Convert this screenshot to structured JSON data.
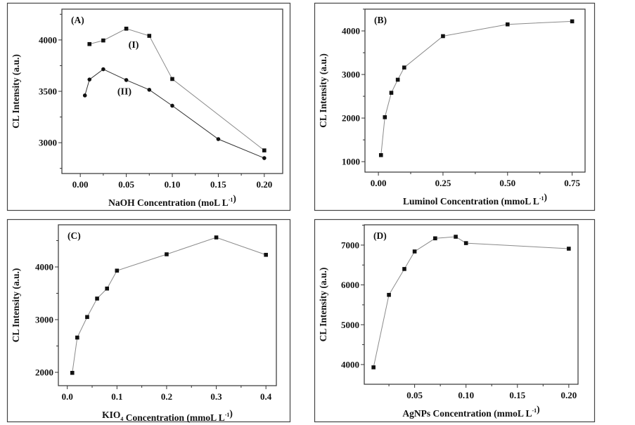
{
  "chart_data": [
    {
      "type": "line",
      "panel_label": "(A)",
      "xlabel": [
        {
          "t": "NaOH Concentration (moL L"
        },
        {
          "t": "-1",
          "s": "sup"
        },
        {
          "t": ")"
        }
      ],
      "ylabel": "CL Intensity (a.u.)",
      "xlim": [
        -0.02,
        0.22
      ],
      "ylim": [
        2700,
        4300
      ],
      "xticks": [
        0,
        0.05,
        0.1,
        0.15,
        0.2
      ],
      "xtick_labels": [
        "0.00",
        "0.05",
        "0.10",
        "0.15",
        "0.20"
      ],
      "xminor": 0.025,
      "yticks": [
        3000,
        3500,
        4000
      ],
      "ytick_labels": [
        "3000",
        "3500",
        "4000"
      ],
      "yminor": 250,
      "series": [
        {
          "name": "(I)",
          "marker": "square",
          "color": "#8a8a8a",
          "x": [
            0.01,
            0.025,
            0.05,
            0.075,
            0.1,
            0.2
          ],
          "y": [
            3960,
            3995,
            4110,
            4040,
            3620,
            2925
          ],
          "label_at": [
            0.058,
            3925
          ]
        },
        {
          "name": "(II)",
          "marker": "circle",
          "color": "#333333",
          "x": [
            0.005,
            0.01,
            0.025,
            0.05,
            0.075,
            0.1,
            0.15,
            0.2
          ],
          "y": [
            3460,
            3615,
            3715,
            3610,
            3515,
            3360,
            3035,
            2850
          ],
          "label_at": [
            0.048,
            3470
          ]
        }
      ]
    },
    {
      "type": "line",
      "panel_label": "(B)",
      "xlabel": [
        {
          "t": "Luminol Concentration (mmoL L"
        },
        {
          "t": "-1",
          "s": "sup"
        },
        {
          "t": ")"
        }
      ],
      "ylabel": "CL Intensity (a.u.)",
      "xlim": [
        -0.052,
        0.8
      ],
      "ylim": [
        760,
        4500
      ],
      "xticks": [
        0,
        0.25,
        0.5,
        0.75
      ],
      "xtick_labels": [
        "0.00",
        "0.25",
        "0.50",
        "0.75"
      ],
      "xminor": 0.125,
      "yticks": [
        1000,
        2000,
        3000,
        4000
      ],
      "ytick_labels": [
        "1000",
        "2000",
        "3000",
        "4000"
      ],
      "yminor": 500,
      "series": [
        {
          "name": "",
          "marker": "square",
          "color": "#8a8a8a",
          "x": [
            0.01,
            0.025,
            0.05,
            0.075,
            0.1,
            0.25,
            0.5,
            0.75
          ],
          "y": [
            1150,
            2020,
            2580,
            2880,
            3160,
            3880,
            4150,
            4220
          ]
        }
      ]
    },
    {
      "type": "line",
      "panel_label": "(C)",
      "xlabel": [
        {
          "t": "KIO"
        },
        {
          "t": "4",
          "s": "sub"
        },
        {
          "t": " Concentration (mmoL L"
        },
        {
          "t": "-1",
          "s": "sup"
        },
        {
          "t": ")"
        }
      ],
      "ylabel": "CL Intensity (a.u.)",
      "xlim": [
        -0.018,
        0.421
      ],
      "ylim": [
        1747,
        4800
      ],
      "xticks": [
        0,
        0.1,
        0.2,
        0.3,
        0.4
      ],
      "xtick_labels": [
        "0.0",
        "0.1",
        "0.2",
        "0.3",
        "0.4"
      ],
      "xminor": 0.05,
      "yticks": [
        2000,
        3000,
        4000
      ],
      "ytick_labels": [
        "2000",
        "3000",
        "4000"
      ],
      "yminor": 500,
      "series": [
        {
          "name": "",
          "marker": "square",
          "color": "#8a8a8a",
          "x": [
            0.01,
            0.02,
            0.04,
            0.06,
            0.08,
            0.1,
            0.2,
            0.3,
            0.4
          ],
          "y": [
            1990,
            2660,
            3050,
            3400,
            3590,
            3930,
            4240,
            4560,
            4230
          ]
        }
      ]
    },
    {
      "type": "line",
      "panel_label": "(D)",
      "xlabel": [
        {
          "t": "AgNPs Concentration (mmoL L"
        },
        {
          "t": "-1",
          "s": "sup"
        },
        {
          "t": ")"
        }
      ],
      "ylabel": "CL Intensity (a.u.)",
      "xlim": [
        0.001,
        0.209
      ],
      "ylim": [
        3505,
        7510
      ],
      "xticks": [
        0.05,
        0.1,
        0.15,
        0.2
      ],
      "xtick_labels": [
        "0.05",
        "0.10",
        "0.15",
        "0.20"
      ],
      "xminor": 0.025,
      "yticks": [
        4000,
        5000,
        6000,
        7000
      ],
      "ytick_labels": [
        "4000",
        "5000",
        "6000",
        "7000"
      ],
      "yminor": 500,
      "series": [
        {
          "name": "",
          "marker": "square",
          "color": "#8a8a8a",
          "x": [
            0.01,
            0.025,
            0.04,
            0.05,
            0.07,
            0.09,
            0.1,
            0.2
          ],
          "y": [
            3930,
            5750,
            6400,
            6840,
            7170,
            7210,
            7050,
            6910
          ]
        }
      ]
    }
  ]
}
